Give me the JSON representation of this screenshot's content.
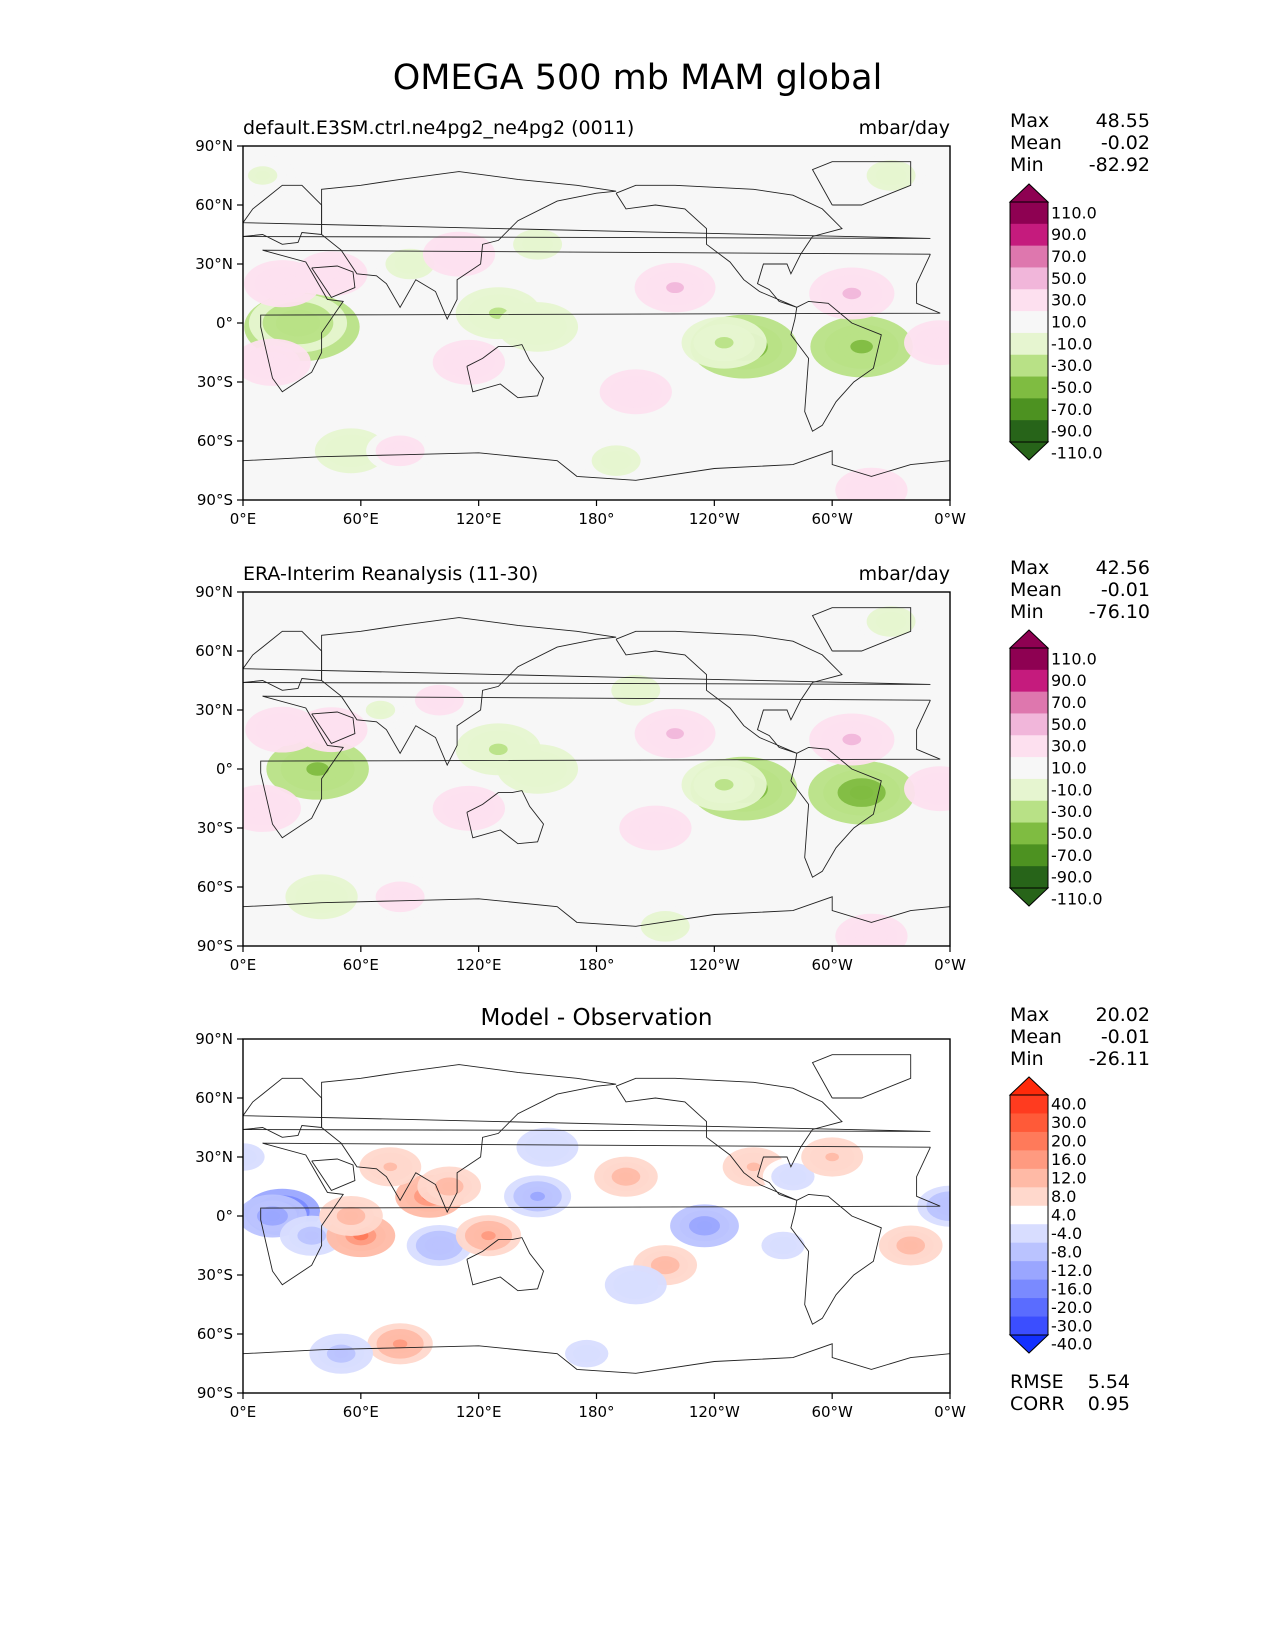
{
  "title": "OMEGA 500 mb MAM global",
  "chart_data": [
    {
      "type": "heatmap",
      "title_left": "default.E3SM.ctrl.ne4pg2_ne4pg2 (0011)",
      "title_right": "mbar/day",
      "xticks": [
        "0°E",
        "60°E",
        "120°E",
        "180°",
        "120°W",
        "60°W",
        "0°W"
      ],
      "yticks": [
        "90°N",
        "60°N",
        "30°N",
        "0°",
        "30°S",
        "60°S",
        "90°S"
      ],
      "xlim": [
        0,
        360
      ],
      "ylim": [
        -90,
        90
      ],
      "stats": [
        {
          "label": "Max",
          "value": "48.55"
        },
        {
          "label": "Mean",
          "value": "-0.02"
        },
        {
          "label": "Min",
          "value": "-82.92"
        }
      ],
      "colorbar": {
        "labels": [
          "110.0",
          "90.0",
          "70.0",
          "50.0",
          "30.0",
          "10.0",
          "-10.0",
          "-30.0",
          "-50.0",
          "-70.0",
          "-90.0",
          "-110.0"
        ],
        "colors": [
          "#8e0152",
          "#c51b7d",
          "#de77ae",
          "#f1b6da",
          "#fde0ef",
          "#f7f7f7",
          "#e6f5d0",
          "#b8e186",
          "#7fbc41",
          "#4d9221",
          "#276419"
        ],
        "extend_top": "#8e0152",
        "extend_bottom": "#276419"
      },
      "blobs": [
        {
          "lon": 30,
          "lat": -2,
          "value": -70
        },
        {
          "lon": 28,
          "lat": 0,
          "value": -50
        },
        {
          "lon": 255,
          "lat": -12,
          "value": -60
        },
        {
          "lon": 245,
          "lat": -10,
          "value": -35
        },
        {
          "lon": 315,
          "lat": -12,
          "value": -55
        },
        {
          "lon": 130,
          "lat": 5,
          "value": -35
        },
        {
          "lon": 150,
          "lat": -2,
          "value": -30
        },
        {
          "lon": 55,
          "lat": -65,
          "value": -20
        },
        {
          "lon": 190,
          "lat": -70,
          "value": -15
        },
        {
          "lon": 330,
          "lat": 75,
          "value": -15
        },
        {
          "lon": 85,
          "lat": 30,
          "value": -15
        },
        {
          "lon": 10,
          "lat": 75,
          "value": -12
        },
        {
          "lon": 150,
          "lat": 40,
          "value": -15
        },
        {
          "lon": 20,
          "lat": 20,
          "value": 25
        },
        {
          "lon": 45,
          "lat": 25,
          "value": 20
        },
        {
          "lon": 15,
          "lat": -20,
          "value": 25
        },
        {
          "lon": 220,
          "lat": 18,
          "value": 30
        },
        {
          "lon": 310,
          "lat": 15,
          "value": 35
        },
        {
          "lon": 115,
          "lat": -20,
          "value": 20
        },
        {
          "lon": 110,
          "lat": 35,
          "value": 20
        },
        {
          "lon": 200,
          "lat": -35,
          "value": 20
        },
        {
          "lon": 320,
          "lat": -85,
          "value": 20
        },
        {
          "lon": 355,
          "lat": -10,
          "value": 20
        },
        {
          "lon": 80,
          "lat": -65,
          "value": 15
        }
      ]
    },
    {
      "type": "heatmap",
      "title_left": "ERA-Interim Reanalysis (11-30)",
      "title_right": "mbar/day",
      "xticks": [
        "0°E",
        "60°E",
        "120°E",
        "180°",
        "120°W",
        "60°W",
        "0°W"
      ],
      "yticks": [
        "90°N",
        "60°N",
        "30°N",
        "0°",
        "30°S",
        "60°S",
        "90°S"
      ],
      "xlim": [
        0,
        360
      ],
      "ylim": [
        -90,
        90
      ],
      "stats": [
        {
          "label": "Max",
          "value": "42.56"
        },
        {
          "label": "Mean",
          "value": "-0.01"
        },
        {
          "label": "Min",
          "value": "-76.10"
        }
      ],
      "colorbar": {
        "labels": [
          "110.0",
          "90.0",
          "70.0",
          "50.0",
          "30.0",
          "10.0",
          "-10.0",
          "-30.0",
          "-50.0",
          "-70.0",
          "-90.0",
          "-110.0"
        ],
        "colors": [
          "#8e0152",
          "#c51b7d",
          "#de77ae",
          "#f1b6da",
          "#fde0ef",
          "#f7f7f7",
          "#e6f5d0",
          "#b8e186",
          "#7fbc41",
          "#4d9221",
          "#276419"
        ],
        "extend_top": "#8e0152",
        "extend_bottom": "#276419"
      },
      "blobs": [
        {
          "lon": 38,
          "lat": 0,
          "value": -55
        },
        {
          "lon": 255,
          "lat": -10,
          "value": -60
        },
        {
          "lon": 245,
          "lat": -8,
          "value": -35
        },
        {
          "lon": 315,
          "lat": -12,
          "value": -60
        },
        {
          "lon": 130,
          "lat": 10,
          "value": -35
        },
        {
          "lon": 150,
          "lat": 0,
          "value": -30
        },
        {
          "lon": 40,
          "lat": -65,
          "value": -20
        },
        {
          "lon": 215,
          "lat": -80,
          "value": -15
        },
        {
          "lon": 330,
          "lat": 75,
          "value": -15
        },
        {
          "lon": 70,
          "lat": 30,
          "value": -12
        },
        {
          "lon": 200,
          "lat": 40,
          "value": -15
        },
        {
          "lon": 85,
          "lat": -65,
          "value": -12
        },
        {
          "lon": 20,
          "lat": 20,
          "value": 22
        },
        {
          "lon": 45,
          "lat": 20,
          "value": 20
        },
        {
          "lon": 10,
          "lat": -20,
          "value": 25
        },
        {
          "lon": 220,
          "lat": 18,
          "value": 30
        },
        {
          "lon": 310,
          "lat": 15,
          "value": 35
        },
        {
          "lon": 115,
          "lat": -20,
          "value": 20
        },
        {
          "lon": 100,
          "lat": 35,
          "value": 15
        },
        {
          "lon": 210,
          "lat": -30,
          "value": 20
        },
        {
          "lon": 320,
          "lat": -85,
          "value": 20
        },
        {
          "lon": 355,
          "lat": -10,
          "value": 20
        },
        {
          "lon": 80,
          "lat": -65,
          "value": 15
        }
      ]
    },
    {
      "type": "heatmap",
      "title_center": "Model - Observation",
      "xticks": [
        "0°E",
        "60°E",
        "120°E",
        "180°",
        "120°W",
        "60°W",
        "0°W"
      ],
      "yticks": [
        "90°N",
        "60°N",
        "30°N",
        "0°",
        "30°S",
        "60°S",
        "90°S"
      ],
      "xlim": [
        0,
        360
      ],
      "ylim": [
        -90,
        90
      ],
      "stats": [
        {
          "label": "Max",
          "value": "20.02"
        },
        {
          "label": "Mean",
          "value": "-0.01"
        },
        {
          "label": "Min",
          "value": "-26.11"
        }
      ],
      "metrics": [
        {
          "label": "RMSE",
          "value": "5.54"
        },
        {
          "label": "CORR",
          "value": "0.95"
        }
      ],
      "colorbar": {
        "labels": [
          "40.0",
          "30.0",
          "20.0",
          "16.0",
          "12.0",
          "8.0",
          "4.0",
          "-4.0",
          "-8.0",
          "-12.0",
          "-16.0",
          "-20.0",
          "-30.0",
          "-40.0"
        ],
        "colors": [
          "#ff3b1f",
          "#ff5a38",
          "#ff7a5a",
          "#ff9a80",
          "#ffbaa6",
          "#ffd8cc",
          "#ffffff",
          "#d8ddff",
          "#bac3ff",
          "#9aa6ff",
          "#7a8aff",
          "#5a6cff",
          "#3b4eff"
        ],
        "extend_top": "#ff2a0a",
        "extend_bottom": "#1230ff"
      },
      "blobs": [
        {
          "lon": 20,
          "lat": 2,
          "value": -24
        },
        {
          "lon": 15,
          "lat": 0,
          "value": -16
        },
        {
          "lon": 35,
          "lat": -10,
          "value": -10
        },
        {
          "lon": 60,
          "lat": -10,
          "value": 16
        },
        {
          "lon": 55,
          "lat": 0,
          "value": 10
        },
        {
          "lon": 95,
          "lat": 10,
          "value": 16
        },
        {
          "lon": 105,
          "lat": 15,
          "value": 10
        },
        {
          "lon": 100,
          "lat": -15,
          "value": -12
        },
        {
          "lon": 150,
          "lat": 10,
          "value": -14
        },
        {
          "lon": 235,
          "lat": -5,
          "value": -16
        },
        {
          "lon": 125,
          "lat": -10,
          "value": 12
        },
        {
          "lon": 195,
          "lat": 20,
          "value": 10
        },
        {
          "lon": 260,
          "lat": 25,
          "value": 8
        },
        {
          "lon": 215,
          "lat": -25,
          "value": 10
        },
        {
          "lon": 80,
          "lat": -65,
          "value": 12
        },
        {
          "lon": 50,
          "lat": -70,
          "value": -10
        },
        {
          "lon": 175,
          "lat": -70,
          "value": -6
        },
        {
          "lon": 340,
          "lat": -15,
          "value": 10
        },
        {
          "lon": 360,
          "lat": 5,
          "value": -12
        },
        {
          "lon": 0,
          "lat": 30,
          "value": -6
        },
        {
          "lon": 155,
          "lat": 35,
          "value": -8
        },
        {
          "lon": 280,
          "lat": 20,
          "value": -6
        },
        {
          "lon": 275,
          "lat": -15,
          "value": -6
        },
        {
          "lon": 300,
          "lat": 30,
          "value": 8
        },
        {
          "lon": 75,
          "lat": 25,
          "value": 8
        },
        {
          "lon": 200,
          "lat": -35,
          "value": -8
        }
      ]
    }
  ]
}
